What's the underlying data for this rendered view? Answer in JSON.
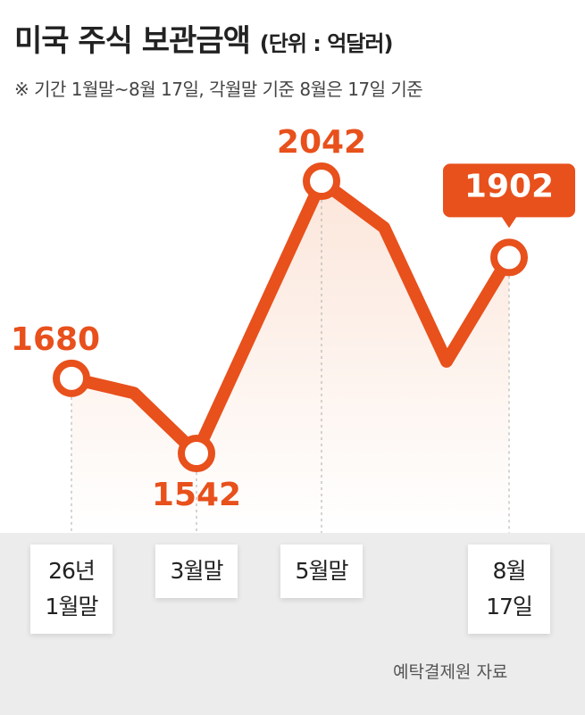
{
  "chart_data": {
    "type": "line",
    "title": "미국 주식 보관금액",
    "unit": "(단위 : 억달러)",
    "subtitle": "※ 기간 1월말~8월 17일, 각월말 기준 8월은 17일 기준",
    "categories": [
      "26년\n1월말",
      null,
      "3월말",
      null,
      "5월말",
      null,
      null,
      "8월\n17일"
    ],
    "values": [
      1680,
      1653,
      1542,
      1792,
      2042,
      1957,
      1711,
      1902
    ],
    "value_labels": [
      "1680",
      null,
      "1542",
      null,
      "2042",
      null,
      null,
      "1902"
    ],
    "color": "#e8501c",
    "source": "예탁결제원 자료"
  }
}
